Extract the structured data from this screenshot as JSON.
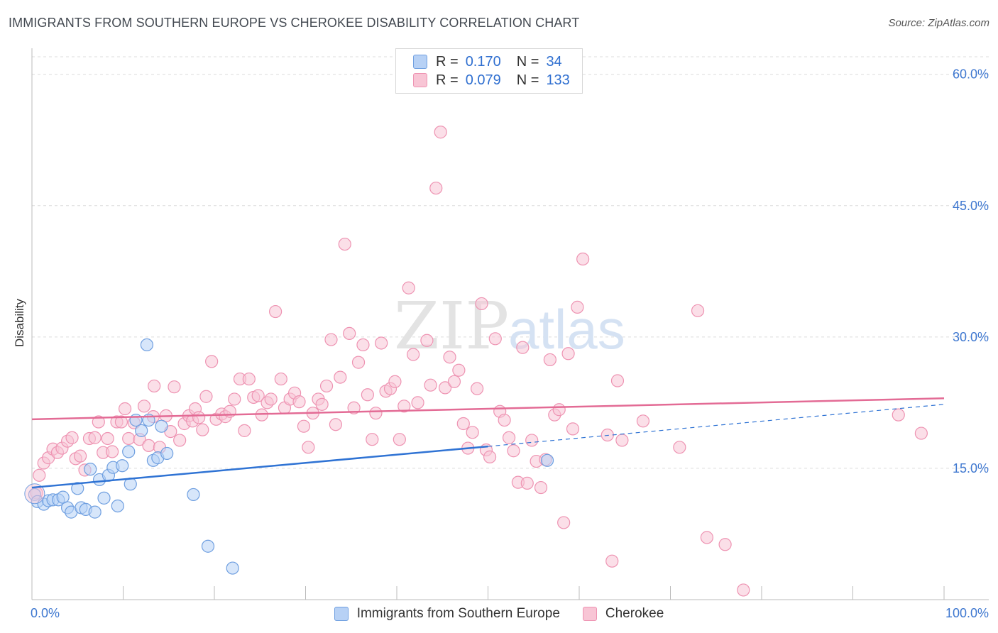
{
  "header": {
    "title": "IMMIGRANTS FROM SOUTHERN EUROPE VS CHEROKEE DISABILITY CORRELATION CHART",
    "source": "Source: ZipAtlas.com"
  },
  "legend": {
    "r_label": "R =",
    "n_label": "N =",
    "rows": [
      {
        "r": "0.170",
        "n": "34"
      },
      {
        "r": "0.079",
        "n": "133"
      }
    ]
  },
  "watermark": {
    "zip": "ZIP",
    "atlas": "atlas"
  },
  "colors": {
    "blue_fill": "#b7d1f5",
    "blue_stroke": "#6f9fe0",
    "blue_line": "#2f73d4",
    "pink_fill": "#f8c5d5",
    "pink_stroke": "#ee93b2",
    "pink_line": "#e36b95",
    "axis_text": "#3f78d0",
    "grid": "#dcdcdc"
  },
  "chart_data": {
    "type": "scatter",
    "title": "IMMIGRANTS FROM SOUTHERN EUROPE VS CHEROKEE DISABILITY CORRELATION CHART",
    "xlabel": "",
    "ylabel": "Disability",
    "xlim": [
      0,
      100
    ],
    "ylim": [
      0,
      62
    ],
    "x_tick_labels": [
      "0.0%",
      "100.0%"
    ],
    "y_ticks": [
      15,
      30,
      45,
      60
    ],
    "y_tick_labels": [
      "15.0%",
      "30.0%",
      "45.0%",
      "60.0%"
    ],
    "grid": true,
    "legend_position": "top-center",
    "series": [
      {
        "name": "Immigrants from Southern Europe",
        "color": "#6f9fe0",
        "r": 0.17,
        "n": 34,
        "trend": {
          "x0": 0,
          "y0": 12.8,
          "x1": 50,
          "y1": 17.5,
          "dashed_to_x": 100,
          "dashed_to_y": 22.3
        },
        "points": [
          [
            0.3,
            12.0
          ],
          [
            0.6,
            11.2
          ],
          [
            1.3,
            10.9
          ],
          [
            1.8,
            11.3
          ],
          [
            2.3,
            11.4
          ],
          [
            2.9,
            11.4
          ],
          [
            3.4,
            11.7
          ],
          [
            3.9,
            10.5
          ],
          [
            4.3,
            10.0
          ],
          [
            5.0,
            12.7
          ],
          [
            5.4,
            10.5
          ],
          [
            5.9,
            10.3
          ],
          [
            6.4,
            14.9
          ],
          [
            6.9,
            10.0
          ],
          [
            7.4,
            13.7
          ],
          [
            7.9,
            11.6
          ],
          [
            8.4,
            14.2
          ],
          [
            8.9,
            15.1
          ],
          [
            9.4,
            10.7
          ],
          [
            9.9,
            15.3
          ],
          [
            10.6,
            16.9
          ],
          [
            10.8,
            13.2
          ],
          [
            11.4,
            20.5
          ],
          [
            12.0,
            19.3
          ],
          [
            12.6,
            29.1
          ],
          [
            12.8,
            20.5
          ],
          [
            13.3,
            15.9
          ],
          [
            13.8,
            16.2
          ],
          [
            14.2,
            19.8
          ],
          [
            14.8,
            16.7
          ],
          [
            17.7,
            12.0
          ],
          [
            19.3,
            6.1
          ],
          [
            22.0,
            3.6
          ],
          [
            56.5,
            15.9
          ]
        ]
      },
      {
        "name": "Cherokee",
        "color": "#ee93b2",
        "r": 0.079,
        "n": 133,
        "trend": {
          "x0": 0,
          "y0": 20.6,
          "x1": 100,
          "y1": 23.0
        },
        "points": [
          [
            0.5,
            12.2
          ],
          [
            0.8,
            14.2
          ],
          [
            1.3,
            15.6
          ],
          [
            1.8,
            16.2
          ],
          [
            2.3,
            17.2
          ],
          [
            2.8,
            16.8
          ],
          [
            3.3,
            17.3
          ],
          [
            3.9,
            18.1
          ],
          [
            4.4,
            18.5
          ],
          [
            4.8,
            16.1
          ],
          [
            5.3,
            16.4
          ],
          [
            5.8,
            14.8
          ],
          [
            6.3,
            18.4
          ],
          [
            6.9,
            18.5
          ],
          [
            7.3,
            20.3
          ],
          [
            7.8,
            16.8
          ],
          [
            8.3,
            18.4
          ],
          [
            8.8,
            16.9
          ],
          [
            9.3,
            20.3
          ],
          [
            9.8,
            20.3
          ],
          [
            10.2,
            21.8
          ],
          [
            10.6,
            18.4
          ],
          [
            11.2,
            20.2
          ],
          [
            11.8,
            18.3
          ],
          [
            12.3,
            22.1
          ],
          [
            12.8,
            17.6
          ],
          [
            13.3,
            20.9
          ],
          [
            13.4,
            24.4
          ],
          [
            14.0,
            17.4
          ],
          [
            14.7,
            21.0
          ],
          [
            15.2,
            19.2
          ],
          [
            15.6,
            24.3
          ],
          [
            16.2,
            18.2
          ],
          [
            16.7,
            20.1
          ],
          [
            17.2,
            21.0
          ],
          [
            17.6,
            20.4
          ],
          [
            17.9,
            21.8
          ],
          [
            18.3,
            20.8
          ],
          [
            18.7,
            19.4
          ],
          [
            19.1,
            23.2
          ],
          [
            19.7,
            27.2
          ],
          [
            20.2,
            20.6
          ],
          [
            20.8,
            21.2
          ],
          [
            21.2,
            20.9
          ],
          [
            21.7,
            21.5
          ],
          [
            22.2,
            22.9
          ],
          [
            22.8,
            25.2
          ],
          [
            23.3,
            19.3
          ],
          [
            23.8,
            25.2
          ],
          [
            24.3,
            23.1
          ],
          [
            24.8,
            23.3
          ],
          [
            25.2,
            21.1
          ],
          [
            25.8,
            22.5
          ],
          [
            26.2,
            22.9
          ],
          [
            26.7,
            32.9
          ],
          [
            27.3,
            25.2
          ],
          [
            27.7,
            21.9
          ],
          [
            28.3,
            22.9
          ],
          [
            28.8,
            23.6
          ],
          [
            29.3,
            22.6
          ],
          [
            29.8,
            19.8
          ],
          [
            30.3,
            17.4
          ],
          [
            30.8,
            21.3
          ],
          [
            31.4,
            22.9
          ],
          [
            31.8,
            22.3
          ],
          [
            32.3,
            24.4
          ],
          [
            32.8,
            29.7
          ],
          [
            33.3,
            20.0
          ],
          [
            33.8,
            25.4
          ],
          [
            34.3,
            40.6
          ],
          [
            34.8,
            30.4
          ],
          [
            35.3,
            21.9
          ],
          [
            35.8,
            27.1
          ],
          [
            36.3,
            29.1
          ],
          [
            36.8,
            23.4
          ],
          [
            37.3,
            18.3
          ],
          [
            37.7,
            21.3
          ],
          [
            38.3,
            29.3
          ],
          [
            38.8,
            23.8
          ],
          [
            39.3,
            24.1
          ],
          [
            39.8,
            24.9
          ],
          [
            40.3,
            18.3
          ],
          [
            40.8,
            22.1
          ],
          [
            41.3,
            35.6
          ],
          [
            41.8,
            28.0
          ],
          [
            42.3,
            22.5
          ],
          [
            43.3,
            29.6
          ],
          [
            43.7,
            24.5
          ],
          [
            44.3,
            47.0
          ],
          [
            44.8,
            53.4
          ],
          [
            45.3,
            24.2
          ],
          [
            45.8,
            27.7
          ],
          [
            46.3,
            24.9
          ],
          [
            46.8,
            26.2
          ],
          [
            47.3,
            20.1
          ],
          [
            47.8,
            17.3
          ],
          [
            48.3,
            19.1
          ],
          [
            48.8,
            24.1
          ],
          [
            49.3,
            33.8
          ],
          [
            49.8,
            17.1
          ],
          [
            50.2,
            16.3
          ],
          [
            50.8,
            29.8
          ],
          [
            51.3,
            21.5
          ],
          [
            51.8,
            20.5
          ],
          [
            52.3,
            18.5
          ],
          [
            52.8,
            17.0
          ],
          [
            53.3,
            13.4
          ],
          [
            53.8,
            28.8
          ],
          [
            54.3,
            13.3
          ],
          [
            54.8,
            18.2
          ],
          [
            55.3,
            15.8
          ],
          [
            55.8,
            12.8
          ],
          [
            56.3,
            16.0
          ],
          [
            56.8,
            27.4
          ],
          [
            57.3,
            21.1
          ],
          [
            57.8,
            21.7
          ],
          [
            58.3,
            8.8
          ],
          [
            58.8,
            28.1
          ],
          [
            59.3,
            19.5
          ],
          [
            59.8,
            33.4
          ],
          [
            60.4,
            38.9
          ],
          [
            63.1,
            18.8
          ],
          [
            63.6,
            4.4
          ],
          [
            64.2,
            25.0
          ],
          [
            64.7,
            18.2
          ],
          [
            67.0,
            20.4
          ],
          [
            71.0,
            17.4
          ],
          [
            73.0,
            33.0
          ],
          [
            74.0,
            7.1
          ],
          [
            76.0,
            6.3
          ],
          [
            78.0,
            1.1
          ],
          [
            95.0,
            21.1
          ],
          [
            97.5,
            19.0
          ]
        ]
      }
    ]
  },
  "x_axis": {
    "left_label": "0.0%",
    "right_label": "100.0%"
  },
  "y_axis": {
    "label": "Disability"
  }
}
